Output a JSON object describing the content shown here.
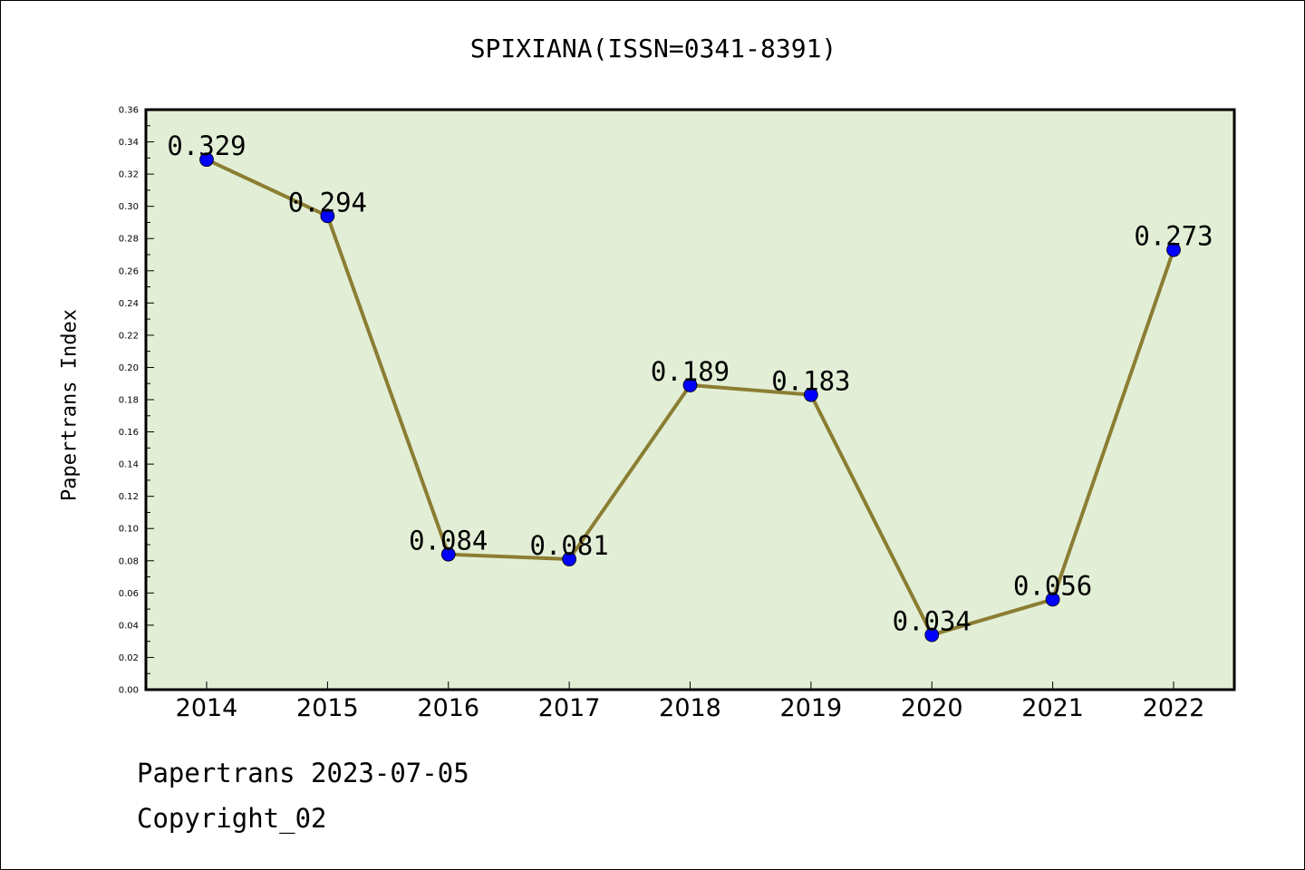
{
  "chart_data": {
    "type": "line",
    "title": "SPIXIANA(ISSN=0341-8391)",
    "xlabel": "",
    "ylabel": "Papertrans Index",
    "categories": [
      "2014",
      "2015",
      "2016",
      "2017",
      "2018",
      "2019",
      "2020",
      "2021",
      "2022"
    ],
    "series": [
      {
        "values": [
          0.329,
          0.294,
          0.084,
          0.081,
          0.189,
          0.183,
          0.034,
          0.056,
          0.273
        ],
        "data_labels": [
          "0.329",
          "0.294",
          "0.084",
          "0.081",
          "0.189",
          "0.183",
          "0.034",
          "0.056",
          "0.273"
        ]
      }
    ],
    "ylim": [
      0,
      0.36
    ],
    "y_ticks": [
      "0.00",
      "0.02",
      "0.04",
      "0.06",
      "0.08",
      "0.10",
      "0.12",
      "0.14",
      "0.16",
      "0.18",
      "0.20",
      "0.22",
      "0.24",
      "0.26",
      "0.28",
      "0.30",
      "0.32",
      "0.34",
      "0.36"
    ],
    "grid": false,
    "colors": {
      "plot_background": "#e2efd6",
      "line": "#8b7d32",
      "marker": "#0000ff"
    }
  },
  "footer": {
    "line1": "Papertrans 2023-07-05",
    "line2": "Copyright_02"
  }
}
